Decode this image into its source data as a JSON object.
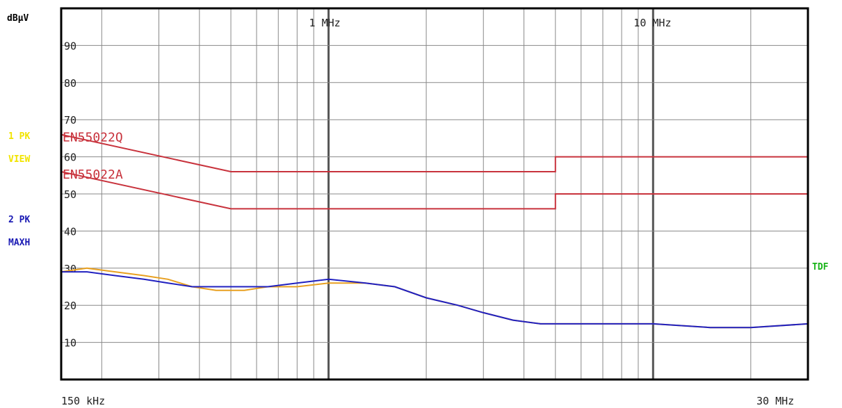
{
  "chart_data": {
    "type": "line",
    "xscale": "log",
    "xlim_mhz": [
      0.15,
      30
    ],
    "ylim": [
      0,
      100
    ],
    "ylabel": "dBµV",
    "x_start_label": "150 kHz",
    "x_end_label": "30 MHz",
    "x_markers": [
      {
        "label": "1 MHz",
        "x": 1
      },
      {
        "label": "10 MHz",
        "x": 10
      }
    ],
    "y_ticks": [
      {
        "label": "90",
        "value": 90
      },
      {
        "label": "80",
        "value": 80
      },
      {
        "label": "70",
        "value": 70
      },
      {
        "label": "60",
        "value": 60
      },
      {
        "label": "50",
        "value": 50
      },
      {
        "label": "40",
        "value": 40
      },
      {
        "label": "30",
        "value": 30
      },
      {
        "label": "20",
        "value": 20
      },
      {
        "label": "10",
        "value": 10
      }
    ],
    "trace_labels": [
      {
        "text": "1 PK",
        "color": "#f2e400"
      },
      {
        "text": "VIEW",
        "color": "#f2e400"
      },
      {
        "text": "2 PK",
        "color": "#1a1ab4"
      },
      {
        "text": "MAXH",
        "color": "#1a1ab4"
      }
    ],
    "right_label": {
      "text": "TDF",
      "color": "#19b419"
    },
    "limit_lines": [
      {
        "name": "EN55022Q",
        "color": "#c8323c",
        "x": [
          0.15,
          0.5,
          0.5,
          5,
          5,
          30
        ],
        "y": [
          66,
          56,
          56,
          56,
          60,
          60
        ]
      },
      {
        "name": "EN55022A",
        "color": "#c8323c",
        "x": [
          0.15,
          0.5,
          0.5,
          5,
          5,
          30
        ],
        "y": [
          56,
          46,
          46,
          46,
          50,
          50
        ]
      }
    ],
    "series": [
      {
        "color": "#e8a020",
        "x": [
          0.15,
          0.18,
          0.22,
          0.27,
          0.32,
          0.38,
          0.45,
          0.55,
          0.65,
          0.8,
          1.0,
          1.3,
          1.6,
          2.0,
          2.5,
          3.0,
          3.7,
          4.5,
          5.5,
          7,
          10,
          15,
          20,
          30
        ],
        "y": [
          29,
          30,
          29,
          28,
          27,
          25,
          24,
          24,
          25,
          25,
          26,
          26,
          25,
          22,
          20,
          18,
          16,
          15,
          15,
          15,
          15,
          14,
          14,
          15
        ]
      },
      {
        "color": "#2020c0",
        "x": [
          0.15,
          0.18,
          0.22,
          0.27,
          0.32,
          0.38,
          0.45,
          0.55,
          0.65,
          0.8,
          1.0,
          1.3,
          1.6,
          2.0,
          2.5,
          3.0,
          3.7,
          4.5,
          5.5,
          7,
          10,
          15,
          20,
          30
        ],
        "y": [
          29,
          29,
          28,
          27,
          26,
          25,
          25,
          25,
          25,
          26,
          27,
          26,
          25,
          22,
          20,
          18,
          16,
          15,
          15,
          15,
          15,
          14,
          14,
          15
        ]
      }
    ]
  }
}
